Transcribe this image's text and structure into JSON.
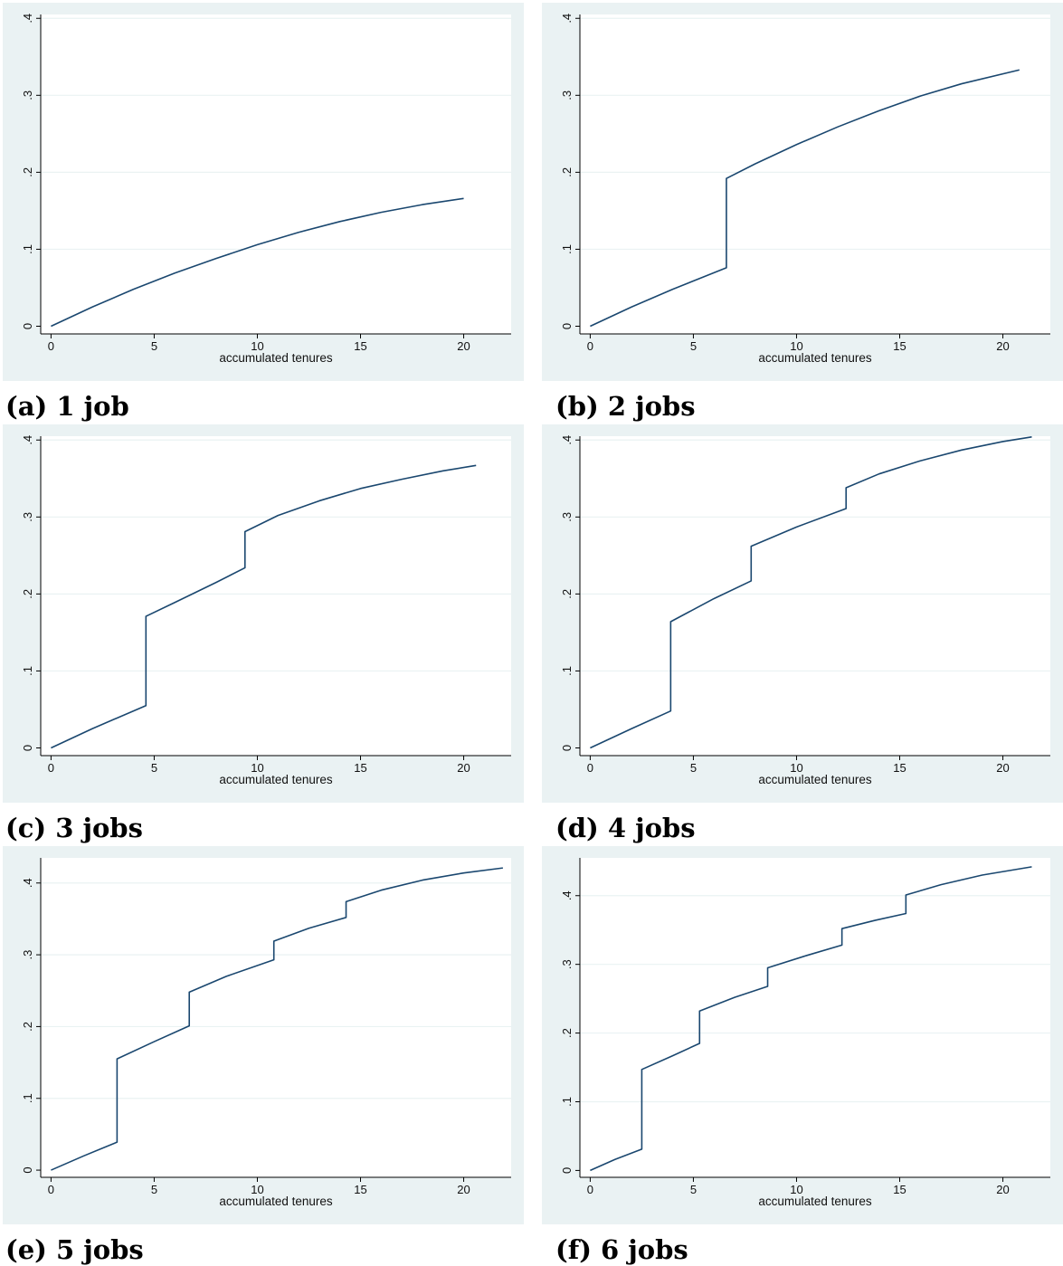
{
  "chart_data": [
    {
      "type": "line",
      "caption": "(a) 1 job",
      "xlabel": "accumulated tenures",
      "ylabel": "",
      "xlim": [
        -0.5,
        22.3
      ],
      "ylim": [
        -0.01,
        0.405
      ],
      "xticks": [
        0,
        5,
        10,
        15,
        20
      ],
      "xtick_labels": [
        "0",
        "5",
        "10",
        "15",
        "20"
      ],
      "yticks": [
        0,
        0.1,
        0.2,
        0.3,
        0.4
      ],
      "ytick_labels": [
        "0",
        ".1",
        ".2",
        ".3",
        ".4"
      ],
      "grid": true,
      "series": [
        {
          "x": [
            0,
            2,
            4,
            6,
            8,
            10,
            12,
            14,
            16,
            18,
            20
          ],
          "y": [
            0,
            0.025,
            0.048,
            0.069,
            0.088,
            0.106,
            0.122,
            0.136,
            0.148,
            0.158,
            0.166
          ]
        }
      ]
    },
    {
      "type": "line",
      "caption": "(b) 2 jobs",
      "xlabel": "accumulated tenures",
      "ylabel": "",
      "xlim": [
        -0.5,
        22.3
      ],
      "ylim": [
        -0.01,
        0.405
      ],
      "xticks": [
        0,
        5,
        10,
        15,
        20
      ],
      "xtick_labels": [
        "0",
        "5",
        "10",
        "15",
        "20"
      ],
      "yticks": [
        0,
        0.1,
        0.2,
        0.3,
        0.4
      ],
      "ytick_labels": [
        "0",
        ".1",
        ".2",
        ".3",
        ".4"
      ],
      "grid": true,
      "series": [
        {
          "x": [
            0,
            2,
            4,
            6.6,
            6.6,
            8,
            10,
            12,
            14,
            16,
            18,
            20.8
          ],
          "y": [
            0,
            0.025,
            0.048,
            0.076,
            0.192,
            0.211,
            0.236,
            0.259,
            0.28,
            0.299,
            0.315,
            0.333
          ]
        }
      ]
    },
    {
      "type": "line",
      "caption": "(c) 3 jobs",
      "xlabel": "accumulated tenures",
      "ylabel": "",
      "xlim": [
        -0.5,
        22.3
      ],
      "ylim": [
        -0.01,
        0.405
      ],
      "xticks": [
        0,
        5,
        10,
        15,
        20
      ],
      "xtick_labels": [
        "0",
        "5",
        "10",
        "15",
        "20"
      ],
      "yticks": [
        0,
        0.1,
        0.2,
        0.3,
        0.4
      ],
      "ytick_labels": [
        "0",
        ".1",
        ".2",
        ".3",
        ".4"
      ],
      "grid": true,
      "series": [
        {
          "x": [
            0,
            2,
            4.6,
            4.6,
            6,
            8,
            9.4,
            9.4,
            11,
            13,
            15,
            17,
            19,
            20.6
          ],
          "y": [
            0,
            0.025,
            0.055,
            0.171,
            0.189,
            0.215,
            0.234,
            0.281,
            0.302,
            0.321,
            0.337,
            0.349,
            0.36,
            0.367
          ]
        }
      ]
    },
    {
      "type": "line",
      "caption": "(d) 4 jobs",
      "xlabel": "accumulated tenures",
      "ylabel": "",
      "xlim": [
        -0.5,
        22.3
      ],
      "ylim": [
        -0.01,
        0.405
      ],
      "xticks": [
        0,
        5,
        10,
        15,
        20
      ],
      "xtick_labels": [
        "0",
        "5",
        "10",
        "15",
        "20"
      ],
      "yticks": [
        0,
        0.1,
        0.2,
        0.3,
        0.4
      ],
      "ytick_labels": [
        "0",
        ".1",
        ".2",
        ".3",
        ".4"
      ],
      "grid": true,
      "series": [
        {
          "x": [
            0,
            2,
            3.9,
            3.9,
            6,
            7.8,
            7.8,
            10,
            12.4,
            12.4,
            14,
            16,
            18,
            20,
            21.4
          ],
          "y": [
            0,
            0.025,
            0.048,
            0.164,
            0.194,
            0.217,
            0.262,
            0.287,
            0.311,
            0.338,
            0.356,
            0.373,
            0.387,
            0.398,
            0.404
          ]
        }
      ]
    },
    {
      "type": "line",
      "caption": "(e) 5 jobs",
      "xlabel": "accumulated tenures",
      "ylabel": "",
      "xlim": [
        -0.5,
        22.3
      ],
      "ylim": [
        -0.01,
        0.435
      ],
      "xticks": [
        0,
        5,
        10,
        15,
        20
      ],
      "xtick_labels": [
        "0",
        "5",
        "10",
        "15",
        "20"
      ],
      "yticks": [
        0,
        0.1,
        0.2,
        0.3,
        0.4
      ],
      "ytick_labels": [
        "0",
        ".1",
        ".2",
        ".3",
        ".4"
      ],
      "grid": true,
      "series": [
        {
          "x": [
            0,
            1.6,
            3.2,
            3.2,
            5,
            6.7,
            6.7,
            8.5,
            10.8,
            10.8,
            12.5,
            14.3,
            14.3,
            16,
            18,
            20,
            21.9
          ],
          "y": [
            0,
            0.02,
            0.039,
            0.155,
            0.179,
            0.201,
            0.248,
            0.27,
            0.293,
            0.319,
            0.337,
            0.352,
            0.374,
            0.39,
            0.404,
            0.414,
            0.421
          ]
        }
      ]
    },
    {
      "type": "line",
      "caption": "(f) 6 jobs",
      "xlabel": "accumulated tenures",
      "ylabel": "",
      "xlim": [
        -0.5,
        22.3
      ],
      "ylim": [
        -0.01,
        0.455
      ],
      "xticks": [
        0,
        5,
        10,
        15,
        20
      ],
      "xtick_labels": [
        "0",
        "5",
        "10",
        "15",
        "20"
      ],
      "yticks": [
        0,
        0.1,
        0.2,
        0.3,
        0.4
      ],
      "ytick_labels": [
        "0",
        ".1",
        ".2",
        ".3",
        ".4"
      ],
      "grid": true,
      "series": [
        {
          "x": [
            0,
            1.2,
            2.5,
            2.5,
            4,
            5.3,
            5.3,
            7,
            8.6,
            8.6,
            10.5,
            12.2,
            12.2,
            13.8,
            15.3,
            15.3,
            17,
            19,
            21.4
          ],
          "y": [
            0,
            0.016,
            0.031,
            0.147,
            0.167,
            0.185,
            0.232,
            0.252,
            0.268,
            0.295,
            0.313,
            0.328,
            0.352,
            0.364,
            0.374,
            0.401,
            0.416,
            0.43,
            0.442
          ]
        }
      ]
    }
  ]
}
